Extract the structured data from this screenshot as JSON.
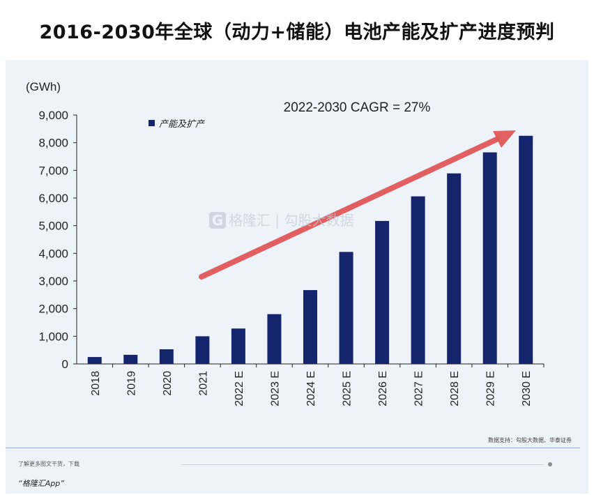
{
  "title": "2016-2030年全球（动力+储能）电池产能及扩产进度预判",
  "chart_data": {
    "type": "bar",
    "ylabel": "(GWh)",
    "ylim": [
      0,
      9000
    ],
    "yticks": [
      "0",
      "1,000",
      "2,000",
      "3,000",
      "4,000",
      "5,000",
      "6,000",
      "7,000",
      "8,000",
      "9,000"
    ],
    "categories": [
      "2018",
      "2019",
      "2020",
      "2021",
      "2022 E",
      "2023 E",
      "2024 E",
      "2025 E",
      "2026 E",
      "2027 E",
      "2028 E",
      "2029 E",
      "2030 E"
    ],
    "series": [
      {
        "name": "产能及扩产",
        "values": [
          250,
          330,
          530,
          1000,
          1280,
          1800,
          2670,
          4050,
          5170,
          6060,
          6890,
          7650,
          8250
        ]
      }
    ],
    "annotation": "2022-2030 CAGR = 27%",
    "legend": "top-left",
    "grid": false,
    "colors": {
      "bar": "#14256e",
      "arrow": "#e05050"
    }
  },
  "watermark": {
    "logo": "G",
    "text": "格隆汇 | 勾股大数据"
  },
  "source": "数据支持：勾股大数据、华泰证券",
  "footer": {
    "note": "了解更多图文干货，下载",
    "app": "“格隆汇App”"
  }
}
